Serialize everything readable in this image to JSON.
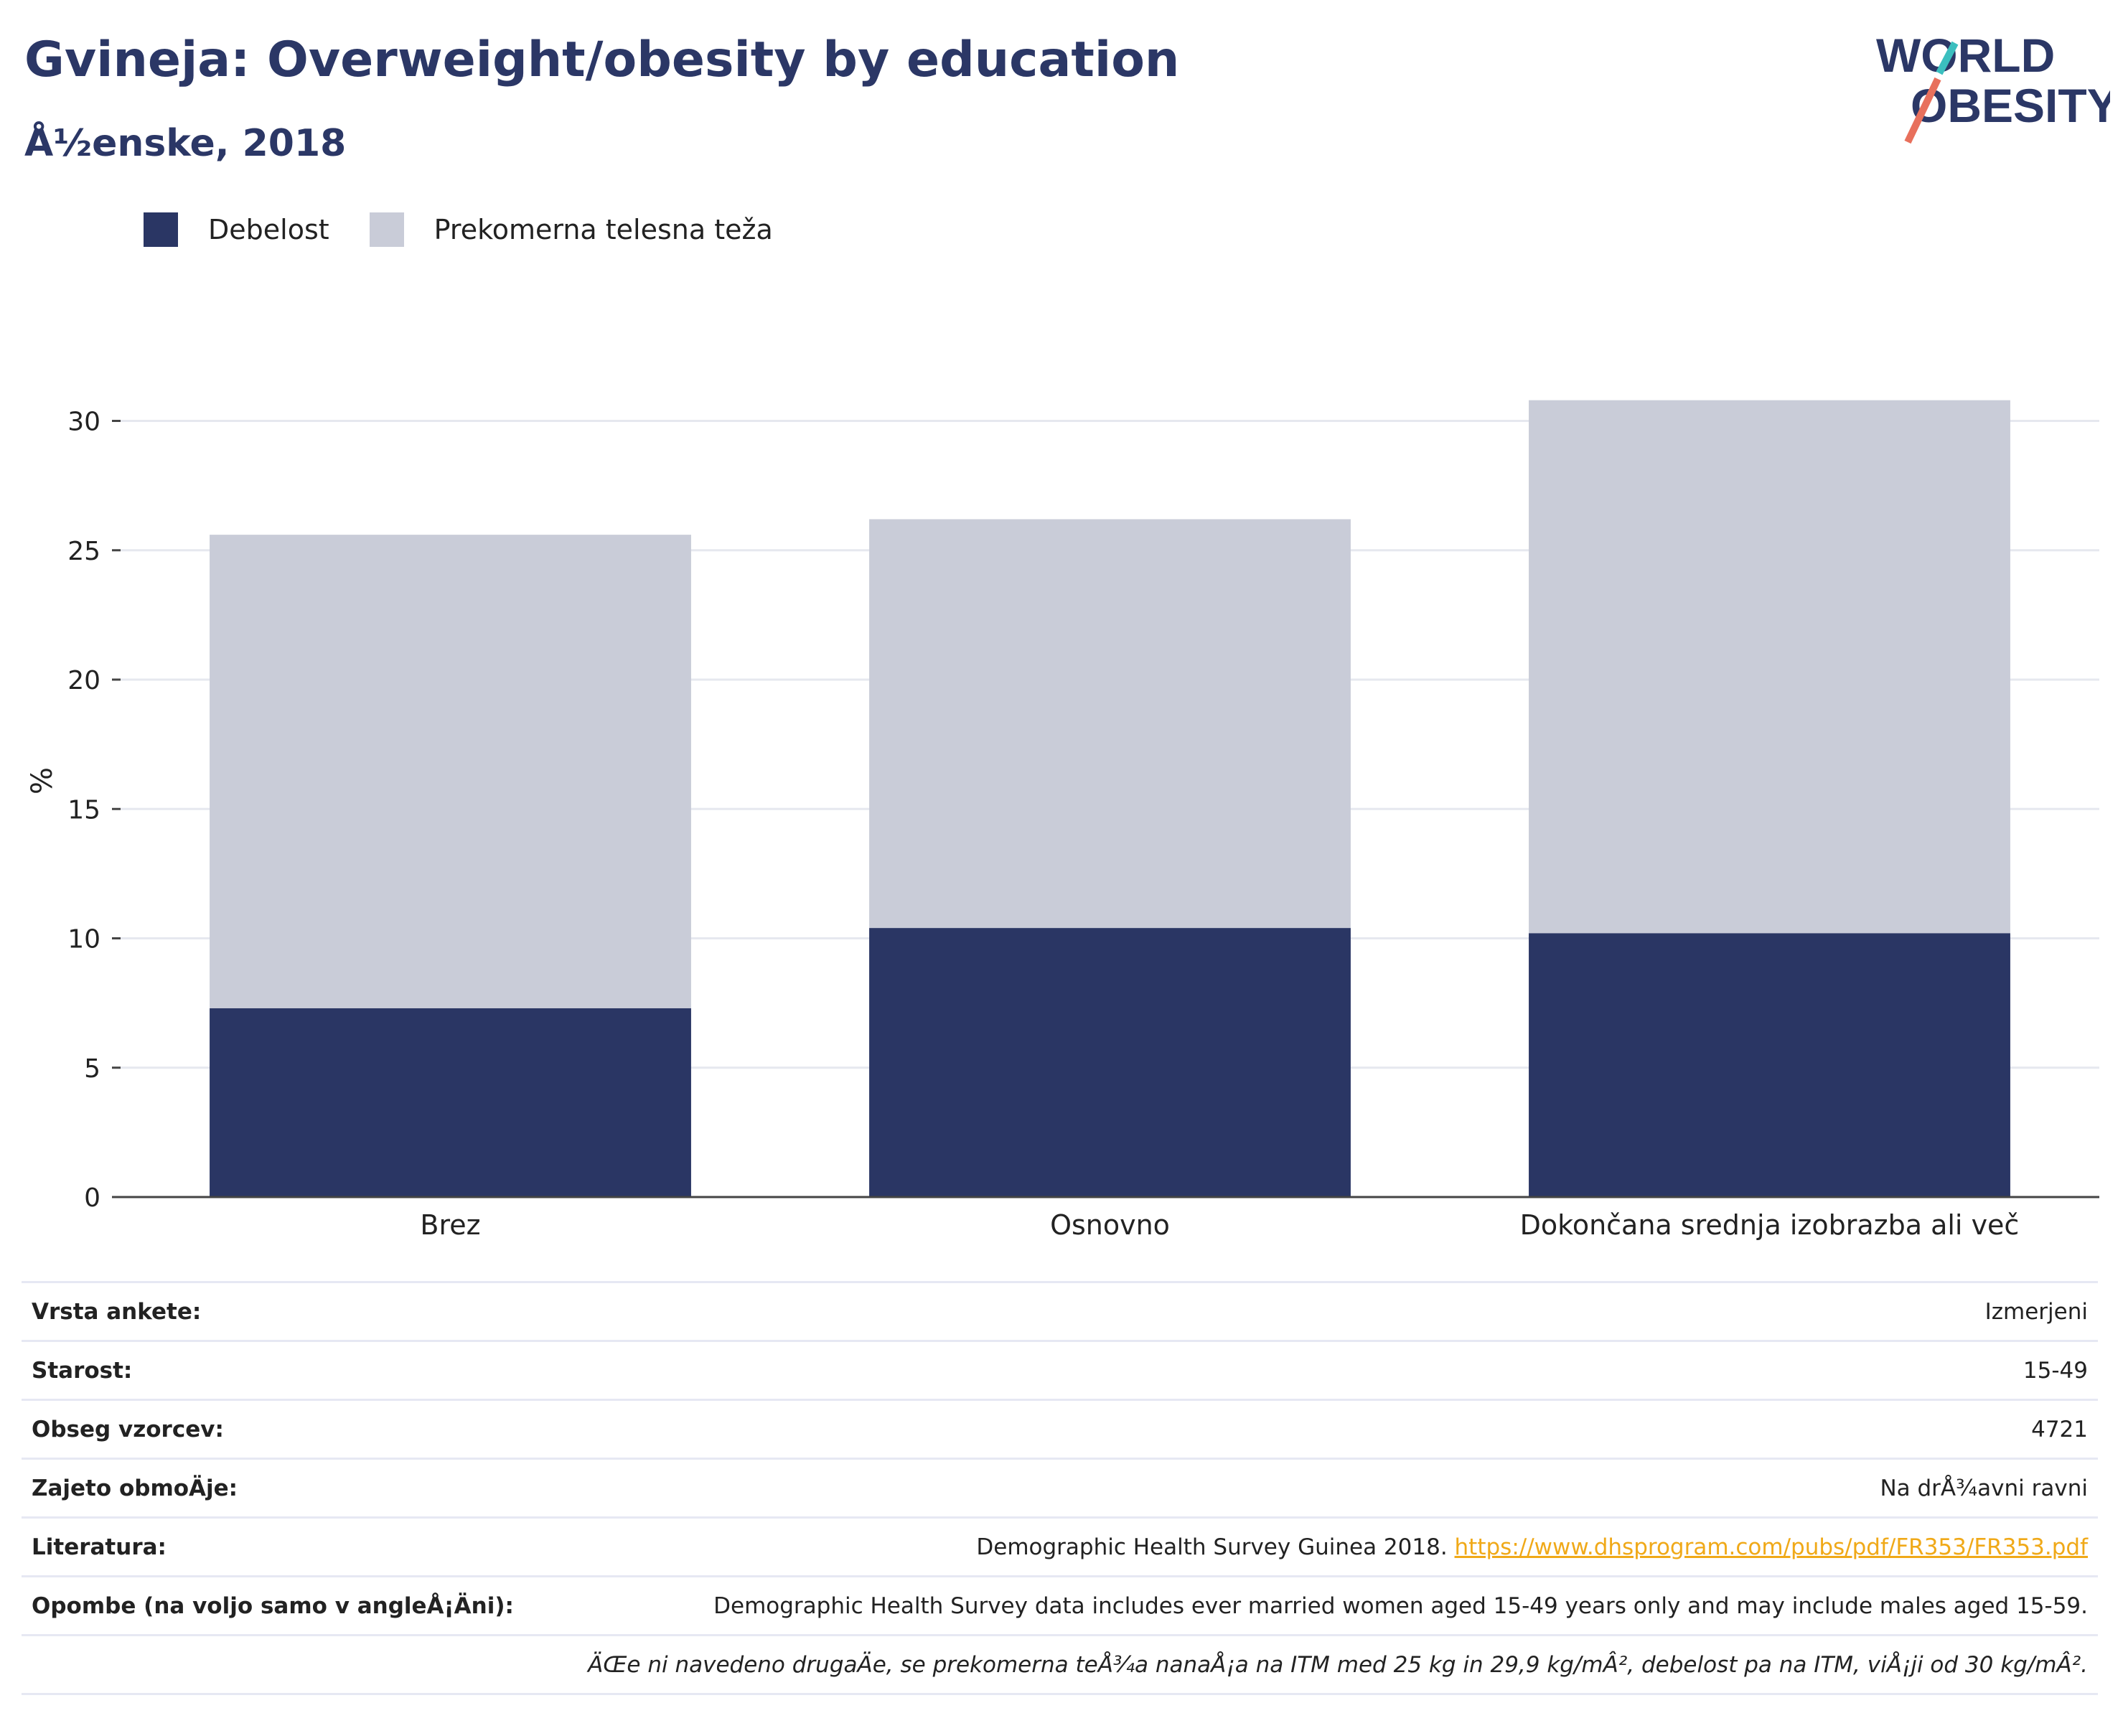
{
  "header": {
    "title": "Gvineja: Overweight/obesity by education",
    "subtitle": "Å½enske, 2018"
  },
  "logo": {
    "line1": "WORLD",
    "line2": "OBESITY"
  },
  "colors": {
    "obesity": "#2a3664",
    "overweight": "#c9ccd8",
    "brand": "#2b3766",
    "accent_teal": "#3bbfbf",
    "accent_coral": "#e8705c",
    "link": "#f0a918"
  },
  "chart_data": {
    "type": "bar",
    "stacked": true,
    "categories": [
      "Brez",
      "Osnovno",
      "Dokončana srednja izobrazba ali več"
    ],
    "series": [
      {
        "name": "Debelost",
        "values": [
          7.3,
          10.4,
          10.2
        ]
      },
      {
        "name": "Prekomerna telesna teža",
        "values": [
          18.3,
          15.8,
          20.6
        ]
      }
    ],
    "ylabel": "%",
    "ylim": [
      0,
      32
    ],
    "yticks": [
      0,
      5,
      10,
      15,
      20,
      25,
      30
    ],
    "grid": true,
    "legend": "top-left"
  },
  "details": [
    {
      "label": "Vrsta ankete:",
      "value": "Izmerjeni"
    },
    {
      "label": "Starost:",
      "value": "15-49"
    },
    {
      "label": "Obseg vzorcev:",
      "value": "4721"
    },
    {
      "label": "Zajeto obmoÄje:",
      "value": "Na drÅ¾avni ravni"
    },
    {
      "label": "Literatura:",
      "value": "Demographic Health Survey Guinea 2018. ",
      "link": "https://www.dhsprogram.com/pubs/pdf/FR353/FR353.pdf"
    },
    {
      "label": "Opombe (na voljo samo v angleÅ¡Äni):",
      "value": "Demographic Health Survey data includes ever married women aged 15-49 years only and may include males aged 15-59."
    }
  ],
  "footnote": "ÄŒe ni navedeno drugaÄe, se prekomerna teÅ¾a nanaÅ¡a na ITM med 25 kg in 29,9 kg/mÂ², debelost pa na ITM, viÅ¡ji od 30 kg/mÂ²."
}
